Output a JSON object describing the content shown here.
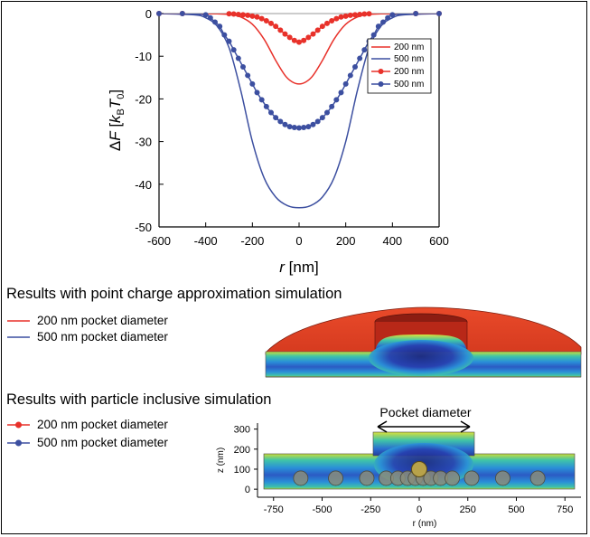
{
  "colors": {
    "red": "#e8312a",
    "blue": "#3c4fa0",
    "axis": "#000000",
    "zero_line": "#999999"
  },
  "chart_data": [
    {
      "type": "line",
      "ylabel": "ΔF [kBT0]",
      "ylabel_parts": {
        "delta": "Δ",
        "f": "F",
        "open": " [",
        "k": "k",
        "b": "B",
        "t": "T",
        "zero": "0",
        "close": "]"
      },
      "xlabel_parts": {
        "r": "r",
        "unit": " [nm]"
      },
      "xlim": [
        -600,
        600
      ],
      "ylim": [
        -50,
        0
      ],
      "xticks": [
        -600,
        -400,
        -200,
        0,
        200,
        400,
        600
      ],
      "yticks": [
        0,
        -10,
        -20,
        -30,
        -40,
        -50
      ],
      "legend_position": "top-right",
      "series": [
        {
          "name": "200 nm",
          "style": "line",
          "color": "red",
          "points": [
            [
              -600,
              0
            ],
            [
              -400,
              0
            ],
            [
              -300,
              -0.2
            ],
            [
              -250,
              -0.8
            ],
            [
              -200,
              -2.5
            ],
            [
              -150,
              -6
            ],
            [
              -100,
              -11
            ],
            [
              -60,
              -14.5
            ],
            [
              -30,
              -16
            ],
            [
              0,
              -16.5
            ],
            [
              30,
              -16
            ],
            [
              60,
              -14.5
            ],
            [
              100,
              -11
            ],
            [
              150,
              -6
            ],
            [
              200,
              -2.5
            ],
            [
              250,
              -0.8
            ],
            [
              300,
              -0.2
            ],
            [
              400,
              0
            ],
            [
              600,
              0
            ]
          ]
        },
        {
          "name": "500 nm",
          "style": "line",
          "color": "blue",
          "points": [
            [
              -600,
              0
            ],
            [
              -450,
              -0.3
            ],
            [
              -400,
              -1
            ],
            [
              -350,
              -3
            ],
            [
              -300,
              -8
            ],
            [
              -250,
              -18
            ],
            [
              -200,
              -30
            ],
            [
              -150,
              -38.5
            ],
            [
              -100,
              -43
            ],
            [
              -50,
              -45
            ],
            [
              0,
              -45.5
            ],
            [
              50,
              -45
            ],
            [
              100,
              -43
            ],
            [
              150,
              -38.5
            ],
            [
              200,
              -30
            ],
            [
              250,
              -18
            ],
            [
              300,
              -8
            ],
            [
              350,
              -3
            ],
            [
              400,
              -1
            ],
            [
              450,
              -0.3
            ],
            [
              600,
              0
            ]
          ]
        },
        {
          "name": "200 nm",
          "style": "markers",
          "color": "red",
          "points": [
            [
              -600,
              0
            ],
            [
              -500,
              0
            ],
            [
              -300,
              -0.05
            ],
            [
              -280,
              -0.1
            ],
            [
              -260,
              -0.2
            ],
            [
              -240,
              -0.3
            ],
            [
              -220,
              -0.4
            ],
            [
              -200,
              -0.6
            ],
            [
              -180,
              -0.8
            ],
            [
              -160,
              -1.2
            ],
            [
              -140,
              -1.7
            ],
            [
              -120,
              -2.3
            ],
            [
              -100,
              -3.0
            ],
            [
              -80,
              -3.9
            ],
            [
              -60,
              -4.8
            ],
            [
              -40,
              -5.6
            ],
            [
              -20,
              -6.3
            ],
            [
              0,
              -6.7
            ],
            [
              20,
              -6.3
            ],
            [
              40,
              -5.6
            ],
            [
              60,
              -4.8
            ],
            [
              80,
              -3.9
            ],
            [
              100,
              -3.0
            ],
            [
              120,
              -2.3
            ],
            [
              140,
              -1.7
            ],
            [
              160,
              -1.2
            ],
            [
              180,
              -0.8
            ],
            [
              200,
              -0.6
            ],
            [
              220,
              -0.4
            ],
            [
              240,
              -0.3
            ],
            [
              260,
              -0.2
            ],
            [
              280,
              -0.1
            ],
            [
              300,
              -0.05
            ],
            [
              500,
              0
            ],
            [
              600,
              0
            ]
          ]
        },
        {
          "name": "500 nm",
          "style": "markers",
          "color": "blue",
          "points": [
            [
              -600,
              0
            ],
            [
              -500,
              0
            ],
            [
              -400,
              -0.3
            ],
            [
              -380,
              -1
            ],
            [
              -360,
              -2
            ],
            [
              -340,
              -3
            ],
            [
              -320,
              -5
            ],
            [
              -300,
              -6.5
            ],
            [
              -280,
              -8.5
            ],
            [
              -260,
              -10.5
            ],
            [
              -240,
              -12.5
            ],
            [
              -220,
              -14.5
            ],
            [
              -200,
              -16.5
            ],
            [
              -180,
              -18.5
            ],
            [
              -160,
              -20.2
            ],
            [
              -140,
              -21.8
            ],
            [
              -120,
              -23.2
            ],
            [
              -100,
              -24.4
            ],
            [
              -80,
              -25.3
            ],
            [
              -60,
              -26
            ],
            [
              -40,
              -26.5
            ],
            [
              -20,
              -26.7
            ],
            [
              0,
              -26.8
            ],
            [
              20,
              -26.7
            ],
            [
              40,
              -26.5
            ],
            [
              60,
              -26
            ],
            [
              80,
              -25.3
            ],
            [
              100,
              -24.4
            ],
            [
              120,
              -23.2
            ],
            [
              140,
              -21.8
            ],
            [
              160,
              -20.2
            ],
            [
              180,
              -18.5
            ],
            [
              200,
              -16.5
            ],
            [
              220,
              -14.5
            ],
            [
              240,
              -12.5
            ],
            [
              260,
              -10.5
            ],
            [
              280,
              -8.5
            ],
            [
              300,
              -6.5
            ],
            [
              320,
              -5
            ],
            [
              340,
              -3
            ],
            [
              360,
              -2
            ],
            [
              380,
              -1
            ],
            [
              400,
              -0.3
            ],
            [
              500,
              0
            ],
            [
              600,
              0
            ]
          ]
        }
      ]
    },
    {
      "type": "heatmap",
      "description_labels": {
        "pocket": "Pocket diameter"
      },
      "xlabel": "r (nm)",
      "ylabel": "z (nm)",
      "xlim": [
        -800,
        800
      ],
      "ylim": [
        -40,
        330
      ],
      "xticks": [
        -750,
        -500,
        -250,
        0,
        250,
        500,
        750
      ],
      "yticks": [
        0,
        100,
        200,
        300
      ],
      "particles_r": [
        -610,
        -430,
        -270,
        -170,
        -110,
        -60,
        -20,
        20,
        60,
        110,
        170,
        270,
        430,
        610
      ]
    }
  ],
  "sections": {
    "point_charge_title": "Results with point charge approximation simulation",
    "point_charge_legend": [
      "200 nm pocket diameter",
      "500 nm pocket diameter"
    ],
    "particle_title": "Results with particle inclusive simulation",
    "particle_legend": [
      "200 nm pocket diameter",
      "500 nm pocket diameter"
    ]
  }
}
